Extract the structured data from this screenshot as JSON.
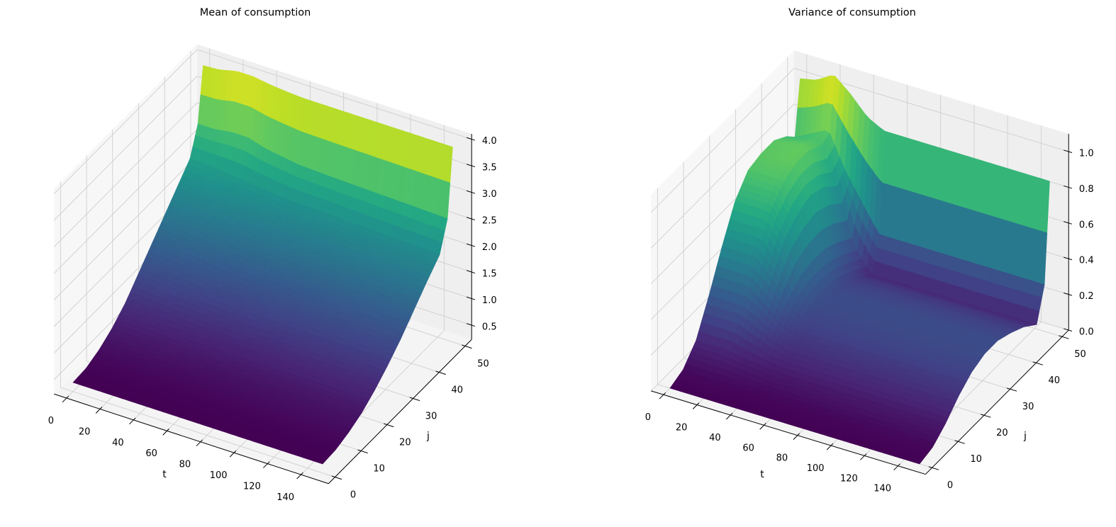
{
  "chart_data": [
    {
      "type": "surface",
      "title": "Mean of consumption",
      "xlabel": "t",
      "ylabel": "j",
      "zlabel": "",
      "colormap": "viridis",
      "xlim": [
        -7.45,
        156.45
      ],
      "ylim": [
        -2.5,
        52.5
      ],
      "zlim": [
        0.23,
        4.1
      ],
      "x_ticks": [
        0,
        20,
        40,
        60,
        80,
        100,
        120,
        140
      ],
      "y_ticks": [
        0,
        10,
        20,
        30,
        40,
        50
      ],
      "z_ticks": [
        "0.5",
        "1.0",
        "1.5",
        "2.0",
        "2.5",
        "3.0",
        "3.5",
        "4.0"
      ],
      "grid": true,
      "t": [
        0,
        10,
        20,
        30,
        40,
        50,
        60,
        80,
        100,
        120,
        149
      ],
      "j": [
        0,
        5,
        10,
        15,
        20,
        25,
        30,
        35,
        40,
        45,
        48,
        50
      ],
      "z": [
        [
          0.4,
          0.42,
          0.52,
          0.68,
          0.9,
          1.2,
          1.5,
          1.8,
          2.1,
          2.4,
          2.9,
          3.9
        ],
        [
          0.4,
          0.42,
          0.52,
          0.67,
          0.88,
          1.18,
          1.48,
          1.78,
          2.08,
          2.38,
          2.9,
          3.92
        ],
        [
          0.4,
          0.42,
          0.51,
          0.66,
          0.86,
          1.15,
          1.45,
          1.75,
          2.05,
          2.35,
          2.95,
          4.0
        ],
        [
          0.4,
          0.42,
          0.51,
          0.65,
          0.85,
          1.12,
          1.42,
          1.72,
          2.02,
          2.32,
          2.95,
          4.0
        ],
        [
          0.4,
          0.42,
          0.5,
          0.64,
          0.83,
          1.08,
          1.37,
          1.68,
          1.98,
          2.28,
          2.85,
          3.95
        ],
        [
          0.4,
          0.42,
          0.5,
          0.63,
          0.82,
          1.06,
          1.34,
          1.65,
          1.95,
          2.25,
          2.8,
          3.92
        ],
        [
          0.4,
          0.42,
          0.5,
          0.62,
          0.81,
          1.05,
          1.32,
          1.63,
          1.93,
          2.22,
          2.75,
          3.9
        ],
        [
          0.4,
          0.42,
          0.5,
          0.62,
          0.8,
          1.04,
          1.3,
          1.6,
          1.9,
          2.2,
          2.72,
          3.9
        ],
        [
          0.4,
          0.42,
          0.5,
          0.62,
          0.8,
          1.03,
          1.29,
          1.58,
          1.88,
          2.18,
          2.7,
          3.9
        ],
        [
          0.4,
          0.42,
          0.5,
          0.62,
          0.8,
          1.03,
          1.28,
          1.57,
          1.87,
          2.15,
          2.68,
          3.9
        ],
        [
          0.4,
          0.42,
          0.5,
          0.62,
          0.8,
          1.02,
          1.27,
          1.56,
          1.85,
          2.12,
          2.65,
          3.9
        ]
      ]
    },
    {
      "type": "surface",
      "title": "Variance of consumption",
      "xlabel": "t",
      "ylabel": "j",
      "zlabel": "",
      "colormap": "viridis",
      "xlim": [
        -7.45,
        156.45
      ],
      "ylim": [
        -2.5,
        52.5
      ],
      "zlim": [
        0,
        1.1
      ],
      "x_ticks": [
        0,
        20,
        40,
        60,
        80,
        100,
        120,
        140
      ],
      "y_ticks": [
        0,
        10,
        20,
        30,
        40,
        50
      ],
      "z_ticks": [
        "0.0",
        "0.2",
        "0.4",
        "0.6",
        "0.8",
        "1.0"
      ],
      "grid": true,
      "t": [
        0,
        10,
        20,
        30,
        40,
        50,
        60,
        80,
        100,
        120,
        149
      ],
      "j": [
        0,
        5,
        10,
        15,
        20,
        25,
        30,
        35,
        40,
        45,
        48,
        50
      ],
      "z": [
        [
          0,
          0.03,
          0.12,
          0.3,
          0.5,
          0.68,
          0.78,
          0.8,
          0.8,
          0.75,
          0.7,
          1.0
        ],
        [
          0,
          0.03,
          0.12,
          0.3,
          0.5,
          0.68,
          0.78,
          0.81,
          0.81,
          0.76,
          0.75,
          1.02
        ],
        [
          0,
          0.03,
          0.12,
          0.3,
          0.5,
          0.68,
          0.78,
          0.82,
          0.82,
          0.78,
          0.8,
          1.08
        ],
        [
          0,
          0.03,
          0.1,
          0.25,
          0.4,
          0.55,
          0.62,
          0.65,
          0.62,
          0.55,
          0.6,
          1.0
        ],
        [
          0,
          0.02,
          0.09,
          0.19,
          0.28,
          0.34,
          0.35,
          0.34,
          0.3,
          0.25,
          0.45,
          0.9
        ],
        [
          0,
          0.02,
          0.08,
          0.16,
          0.22,
          0.25,
          0.25,
          0.22,
          0.18,
          0.12,
          0.3,
          0.85
        ],
        [
          0,
          0.02,
          0.08,
          0.16,
          0.22,
          0.25,
          0.25,
          0.22,
          0.18,
          0.12,
          0.3,
          0.85
        ],
        [
          0,
          0.02,
          0.08,
          0.16,
          0.22,
          0.25,
          0.25,
          0.22,
          0.18,
          0.12,
          0.3,
          0.85
        ],
        [
          0,
          0.02,
          0.08,
          0.16,
          0.22,
          0.25,
          0.25,
          0.22,
          0.18,
          0.12,
          0.3,
          0.85
        ],
        [
          0,
          0.02,
          0.08,
          0.16,
          0.22,
          0.25,
          0.25,
          0.22,
          0.18,
          0.12,
          0.3,
          0.85
        ],
        [
          0,
          0.02,
          0.08,
          0.16,
          0.22,
          0.25,
          0.25,
          0.22,
          0.18,
          0.12,
          0.3,
          0.85
        ]
      ]
    }
  ]
}
